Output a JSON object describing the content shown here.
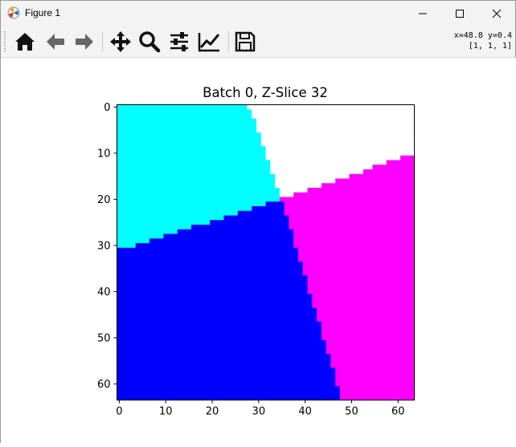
{
  "window": {
    "title": "Figure 1"
  },
  "toolbar": {
    "tools": [
      "home-icon",
      "back-arrow-icon",
      "forward-arrow-icon",
      "move-icon",
      "zoom-icon",
      "sliders-icon",
      "line-chart-icon",
      "save-icon"
    ],
    "coords_line1": "x=48.8 y=0.4",
    "coords_line2": "[1, 1, 1]"
  },
  "chart_data": {
    "type": "heatmap",
    "title": "Batch 0, Z-Slice 32",
    "xlabel": "",
    "ylabel": "",
    "xlim": [
      -0.5,
      63.5
    ],
    "ylim": [
      63.5,
      -0.5
    ],
    "x_ticks": [
      0,
      10,
      20,
      30,
      40,
      50,
      60
    ],
    "y_ticks": [
      0,
      10,
      20,
      30,
      40,
      50,
      60
    ],
    "grid": false,
    "regions": [
      {
        "color": "#00ffff",
        "label": "cyan"
      },
      {
        "color": "#ffffff",
        "label": "white"
      },
      {
        "color": "#ff00ff",
        "label": "magenta"
      },
      {
        "color": "#0000ff",
        "label": "blue"
      }
    ]
  }
}
